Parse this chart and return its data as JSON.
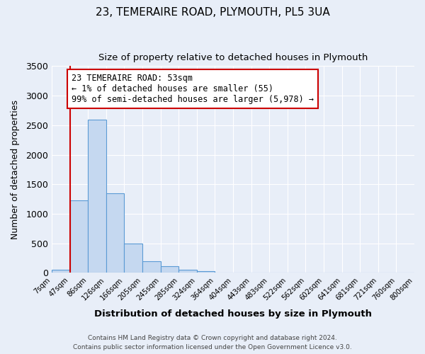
{
  "title": "23, TEMERAIRE ROAD, PLYMOUTH, PL5 3UA",
  "subtitle": "Size of property relative to detached houses in Plymouth",
  "xlabel": "Distribution of detached houses by size in Plymouth",
  "ylabel": "Number of detached properties",
  "bar_color": "#c5d8f0",
  "bar_edge_color": "#5b9bd5",
  "bin_labels": [
    "7sqm",
    "47sqm",
    "86sqm",
    "126sqm",
    "166sqm",
    "205sqm",
    "245sqm",
    "285sqm",
    "324sqm",
    "364sqm",
    "404sqm",
    "443sqm",
    "483sqm",
    "522sqm",
    "562sqm",
    "602sqm",
    "641sqm",
    "681sqm",
    "721sqm",
    "760sqm",
    "800sqm"
  ],
  "bar_heights": [
    50,
    1230,
    2590,
    1350,
    500,
    200,
    110,
    50,
    30,
    5,
    5,
    0,
    5,
    0,
    0,
    0,
    0,
    0,
    0,
    0,
    0
  ],
  "ylim": [
    0,
    3500
  ],
  "yticks": [
    0,
    500,
    1000,
    1500,
    2000,
    2500,
    3000,
    3500
  ],
  "vline_color": "#cc0000",
  "annotation_title": "23 TEMERAIRE ROAD: 53sqm",
  "annotation_line1": "← 1% of detached houses are smaller (55)",
  "annotation_line2": "99% of semi-detached houses are larger (5,978) →",
  "annotation_box_color": "#ffffff",
  "annotation_box_edge": "#cc0000",
  "footer1": "Contains HM Land Registry data © Crown copyright and database right 2024.",
  "footer2": "Contains public sector information licensed under the Open Government Licence v3.0.",
  "background_color": "#e8eef8",
  "grid_color": "#ffffff"
}
